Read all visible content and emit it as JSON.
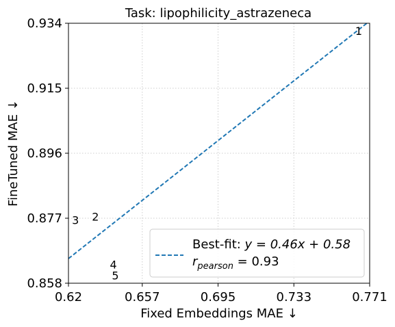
{
  "chart_data": {
    "type": "scatter",
    "title": "Task: lipophilicity_astrazeneca",
    "xlabel": "Fixed Embeddings MAE ↓",
    "ylabel": "FineTuned MAE ↓",
    "xlim": [
      0.62,
      0.771
    ],
    "ylim": [
      0.858,
      0.934
    ],
    "xticks": [
      0.62,
      0.657,
      0.695,
      0.733,
      0.771
    ],
    "xtick_labels": [
      "0.62",
      "0.657",
      "0.695",
      "0.733",
      "0.771"
    ],
    "yticks": [
      0.858,
      0.877,
      0.896,
      0.915,
      0.934
    ],
    "ytick_labels": [
      "0.858",
      "0.877",
      "0.896",
      "0.915",
      "0.934"
    ],
    "grid": true,
    "points": [
      {
        "label": "1",
        "x": 0.7655,
        "y": 0.9315
      },
      {
        "label": "2",
        "x": 0.6335,
        "y": 0.8772
      },
      {
        "label": "3",
        "x": 0.6235,
        "y": 0.8762
      },
      {
        "label": "4",
        "x": 0.6425,
        "y": 0.8632
      },
      {
        "label": "5",
        "x": 0.6435,
        "y": 0.86
      }
    ],
    "fit_line": {
      "slope": 0.46,
      "intercept": 0.58,
      "color": "#1f77b4",
      "style": "dashed"
    },
    "legend": {
      "placement": "lower-right",
      "fit_label_prefix": "Best-fit: ",
      "fit_label_eq": "y = 0.46x + 0.58",
      "r_symbol": "r",
      "r_subscript": "pearson",
      "r_value": " = 0.93"
    }
  }
}
